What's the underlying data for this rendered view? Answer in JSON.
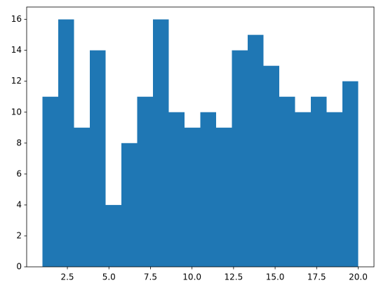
{
  "chart_data": {
    "type": "histogram",
    "bins": [
      1,
      1.95,
      2.9,
      3.85,
      4.8,
      5.75,
      6.7,
      7.65,
      8.6,
      9.55,
      10.5,
      11.45,
      12.4,
      13.35,
      14.3,
      15.25,
      16.2,
      17.15,
      18.1,
      19.05,
      20
    ],
    "values": [
      11,
      16,
      9,
      14,
      4,
      8,
      11,
      16,
      10,
      9,
      10,
      9,
      14,
      15,
      13,
      11,
      10,
      11,
      10,
      12
    ],
    "color": "#1f77b4",
    "xlim": [
      0.05,
      20.95
    ],
    "xticks": [
      2.5,
      {
        "value": 5,
        "label": "5.0"
      },
      7.5,
      {
        "value": 10,
        "label": "10.0"
      },
      12.5,
      {
        "value": 15,
        "label": "15.0"
      },
      17.5,
      {
        "value": 20,
        "label": "20.0"
      }
    ],
    "ylim": [
      0,
      16.8
    ],
    "yticks": [
      0,
      2,
      4,
      6,
      8,
      10,
      12,
      14,
      16
    ]
  }
}
